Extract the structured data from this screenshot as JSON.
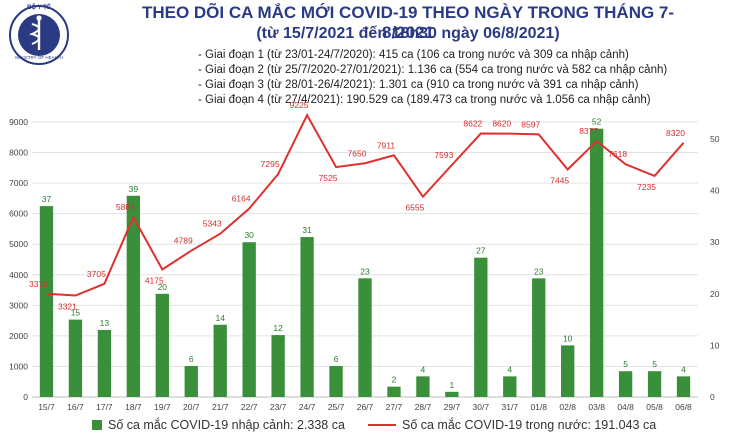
{
  "header": {
    "title": "THEO DÕI CA MẮC MỚI COVID-19 THEO NGÀY TRONG THÁNG 7-8/2021",
    "subtitle": "(từ 15/7/2021 đến 18h30 ngày 06/8/2021)",
    "phases": [
      "- Giai đoạn 1 (từ 23/01-24/7/2020): 415 ca (106 ca trong nước và 309 ca nhập cảnh)",
      "- Giai đoạn 2 (từ 25/7/2020-27/01/2021): 1.136 ca (554 ca trong nước và 582 ca nhập cảnh)",
      "- Giai đoạn 3 (từ 28/01-26/4/2021): 1.301 ca (910 ca trong nước và 391 ca nhập cảnh)",
      "- Giai đoạn 4 (từ 27/4/2021): 190.529 ca (189.473 ca trong nước và 1.056 ca nhập cảnh)"
    ]
  },
  "logo": {
    "text": "BỘ Y TẾ",
    "caption": "MINISTRY OF HEALTH",
    "icon": "ministry-of-health-logo"
  },
  "chart_data": {
    "type": "bar+line",
    "categories": [
      "15/7",
      "16/7",
      "17/7",
      "18/7",
      "19/7",
      "20/7",
      "21/7",
      "22/7",
      "23/7",
      "24/7",
      "25/7",
      "26/7",
      "27/7",
      "28/7",
      "29/7",
      "30/7",
      "31/7",
      "01/8",
      "02/8",
      "03/8",
      "04/8",
      "05/8",
      "06/8"
    ],
    "series": [
      {
        "name": "Số ca mắc COVID-19 nhập cảnh: 2.338 ca",
        "type": "bar",
        "axis": "right",
        "values": [
          37,
          15,
          13,
          39,
          20,
          6,
          14,
          30,
          12,
          31,
          6,
          23,
          2,
          4,
          1,
          27,
          4,
          23,
          10,
          52,
          5,
          5,
          4
        ],
        "color": "#3a8f3a"
      },
      {
        "name": "Số ca mắc COVID-19 trong nước: 191.043 ca",
        "type": "line",
        "axis": "left",
        "values": [
          3379,
          3321,
          3705,
          5887,
          4175,
          4789,
          5343,
          6164,
          7295,
          9225,
          7525,
          7650,
          7911,
          6555,
          7593,
          8622,
          8620,
          8597,
          7445,
          8377,
          7618,
          7235,
          8320
        ],
        "color": "#e0302e"
      }
    ],
    "y_left": {
      "ticks": [
        0,
        1000,
        2000,
        3000,
        4000,
        5000,
        6000,
        7000,
        8000,
        9000
      ],
      "range": [
        0,
        9000
      ]
    },
    "y_right": {
      "ticks": [
        0,
        10,
        20,
        30,
        40,
        50
      ],
      "range": [
        0,
        53.3
      ]
    },
    "grid": true,
    "legend": "bottom"
  }
}
